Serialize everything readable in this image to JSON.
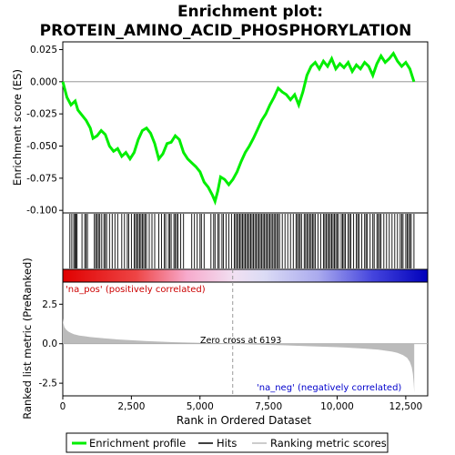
{
  "chart_data": {
    "type": "line",
    "title_line1": "Enrichment plot:",
    "title_line2": "PROTEIN_AMINO_ACID_PHOSPHORYLATION",
    "top_panel": {
      "ylabel": "Enrichment score (ES)",
      "ylim": [
        -0.102,
        0.031
      ],
      "yticks": [
        0.025,
        0.0,
        -0.025,
        -0.05,
        -0.075,
        -0.1
      ],
      "ytick_labels": [
        "0.025",
        "0.000",
        "-0.025",
        "-0.050",
        "-0.075",
        "-0.100"
      ],
      "series_name": "Enrichment profile",
      "color": "#00ee00",
      "x": [
        0,
        150,
        300,
        450,
        550,
        700,
        850,
        1000,
        1100,
        1250,
        1400,
        1550,
        1700,
        1850,
        2000,
        2150,
        2300,
        2450,
        2600,
        2750,
        2900,
        3050,
        3200,
        3350,
        3500,
        3650,
        3800,
        3950,
        4100,
        4250,
        4400,
        4550,
        4700,
        4850,
        5000,
        5150,
        5300,
        5450,
        5550,
        5650,
        5750,
        5900,
        6050,
        6200,
        6350,
        6500,
        6650,
        6800,
        6950,
        7100,
        7250,
        7400,
        7550,
        7700,
        7850,
        8000,
        8150,
        8300,
        8450,
        8600,
        8750,
        8900,
        9050,
        9200,
        9350,
        9500,
        9650,
        9800,
        9950,
        10100,
        10250,
        10400,
        10550,
        10700,
        10850,
        11000,
        11150,
        11300,
        11450,
        11600,
        11750,
        11900,
        12050,
        12200,
        12350,
        12500,
        12650,
        12800
      ],
      "y": [
        0.0,
        -0.012,
        -0.018,
        -0.015,
        -0.022,
        -0.026,
        -0.03,
        -0.036,
        -0.044,
        -0.042,
        -0.038,
        -0.041,
        -0.05,
        -0.054,
        -0.052,
        -0.058,
        -0.055,
        -0.06,
        -0.055,
        -0.045,
        -0.038,
        -0.036,
        -0.04,
        -0.048,
        -0.06,
        -0.056,
        -0.048,
        -0.047,
        -0.042,
        -0.045,
        -0.055,
        -0.06,
        -0.063,
        -0.066,
        -0.07,
        -0.078,
        -0.082,
        -0.088,
        -0.093,
        -0.085,
        -0.074,
        -0.076,
        -0.08,
        -0.076,
        -0.07,
        -0.062,
        -0.055,
        -0.05,
        -0.044,
        -0.037,
        -0.03,
        -0.025,
        -0.018,
        -0.012,
        -0.005,
        -0.008,
        -0.01,
        -0.014,
        -0.01,
        -0.018,
        -0.008,
        0.005,
        0.012,
        0.015,
        0.01,
        0.016,
        0.012,
        0.018,
        0.01,
        0.014,
        0.011,
        0.015,
        0.008,
        0.013,
        0.01,
        0.015,
        0.012,
        0.005,
        0.014,
        0.02,
        0.015,
        0.018,
        0.022,
        0.016,
        0.012,
        0.015,
        0.01,
        0.0
      ]
    },
    "hits_label": "Hits",
    "hits_x": [
      260,
      330,
      400,
      440,
      480,
      520,
      700,
      800,
      850,
      900,
      1150,
      1200,
      1250,
      1300,
      1350,
      1420,
      1500,
      1550,
      1600,
      1700,
      1800,
      1900,
      2000,
      2150,
      2250,
      2350,
      2400,
      2500,
      2600,
      2650,
      2700,
      2750,
      2800,
      2850,
      2900,
      2950,
      3000,
      3050,
      3150,
      3250,
      3350,
      3500,
      3600,
      3700,
      3750,
      3850,
      3900,
      3950,
      4050,
      4100,
      4150,
      4200,
      4300,
      4400,
      4700,
      4800,
      4900,
      5000,
      5050,
      5150,
      5400,
      5500,
      5550,
      5650,
      5700,
      5800,
      5850,
      5950,
      6050,
      6150,
      6250,
      6300,
      6350,
      6400,
      6450,
      6500,
      6550,
      6600,
      6650,
      6700,
      6750,
      6800,
      6850,
      6900,
      6950,
      7000,
      7050,
      7100,
      7150,
      7200,
      7250,
      7300,
      7350,
      7400,
      7450,
      7500,
      7550,
      7600,
      7650,
      7700,
      7750,
      7800,
      7850,
      7900,
      8000,
      8100,
      8200,
      8300,
      8400,
      8500,
      8550,
      8600,
      8650,
      8700,
      8800,
      8850,
      8900,
      8950,
      9000,
      9050,
      9100,
      9150,
      9200,
      9300,
      9400,
      9500,
      9550,
      9600,
      9650,
      9700,
      9750,
      9800,
      9850,
      9900,
      9950,
      10000,
      10050,
      10150,
      10200,
      10250,
      10300,
      10400,
      10450,
      10500,
      10600,
      10700,
      10750,
      10800,
      10900,
      11000,
      11050,
      11100,
      11200,
      11300,
      11350,
      11450,
      11500,
      11550,
      11600,
      11700,
      11800,
      11900,
      12000,
      12100,
      12200,
      12300,
      12350,
      12400,
      12500,
      12550,
      12600,
      12650,
      12700,
      12800
    ],
    "bottom_panel": {
      "ylabel": "Ranked list metric (PreRanked)",
      "ylim": [
        -3.3,
        3.9
      ],
      "yticks": [
        2.5,
        0.0,
        -2.5
      ],
      "ytick_labels": [
        "2.5",
        "0.0",
        "-2.5"
      ],
      "series_name": "Ranking metric scores",
      "color": "#bbbbbb",
      "x": [
        0,
        20,
        60,
        120,
        200,
        300,
        400,
        600,
        800,
        1000,
        1500,
        2000,
        3000,
        4000,
        5000,
        6193,
        7000,
        8000,
        9000,
        10000,
        10500,
        11000,
        11500,
        12000,
        12200,
        12400,
        12550,
        12650,
        12720,
        12760,
        12790,
        12810
      ],
      "y": [
        1.6,
        1.3,
        1.05,
        0.9,
        0.78,
        0.68,
        0.6,
        0.52,
        0.47,
        0.42,
        0.34,
        0.27,
        0.17,
        0.1,
        0.05,
        0.0,
        -0.05,
        -0.1,
        -0.16,
        -0.22,
        -0.26,
        -0.31,
        -0.38,
        -0.5,
        -0.58,
        -0.72,
        -0.9,
        -1.15,
        -1.5,
        -1.9,
        -2.5,
        -3.1
      ]
    },
    "xlabel": "Rank in Ordered Dataset",
    "xlim": [
      0,
      13300
    ],
    "xticks": [
      0,
      2500,
      5000,
      7500,
      10000,
      12500
    ],
    "xtick_labels": [
      "0",
      "2,500",
      "5,000",
      "7,500",
      "10,000",
      "12,500"
    ],
    "zero_cross_rank": 6193,
    "zero_cross_label": "Zero cross at 6193",
    "pos_label": "'na_pos' (positively correlated)",
    "neg_label": "'na_neg' (negatively correlated)",
    "pos_label_color": "#cc0000",
    "neg_label_color": "#0000cc",
    "legend": {
      "placement": "bottom",
      "items": [
        {
          "label": "Enrichment profile",
          "color": "#00ee00"
        },
        {
          "label": "Hits",
          "color": "#000000"
        },
        {
          "label": "Ranking metric scores",
          "color": "#bbbbbb"
        }
      ]
    }
  }
}
